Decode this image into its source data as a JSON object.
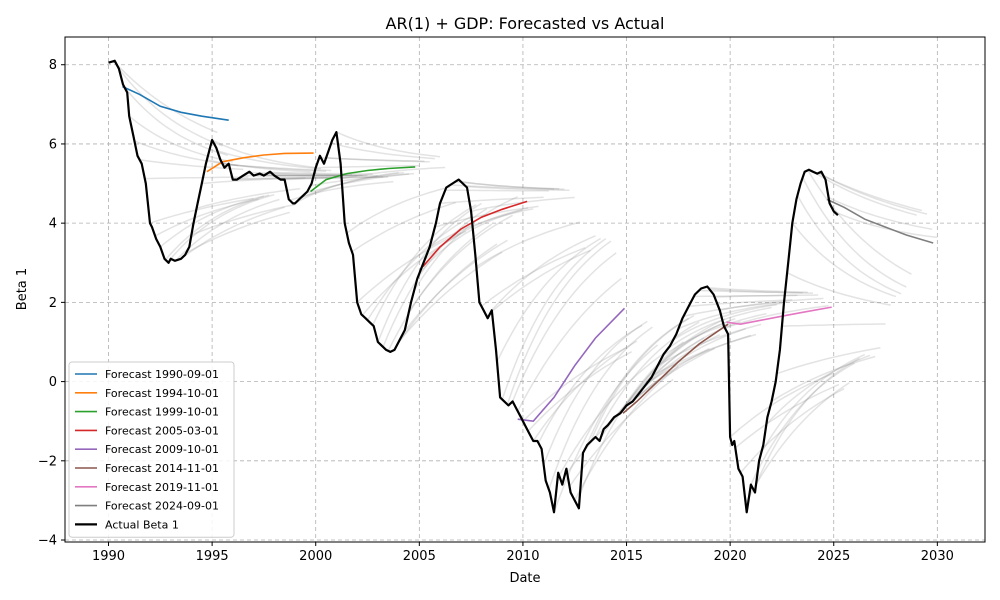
{
  "chart_data": {
    "type": "line",
    "title": "AR(1) + GDP: Forecasted vs Actual",
    "xlabel": "Date",
    "ylabel": "Beta 1",
    "xlim": [
      1987.9,
      2032.3
    ],
    "ylim": [
      -4.05,
      8.7
    ],
    "x_ticks": [
      1990,
      1995,
      2000,
      2005,
      2010,
      2015,
      2020,
      2025,
      2030
    ],
    "y_ticks": [
      -4,
      -2,
      0,
      2,
      4,
      6,
      8
    ],
    "grid": true,
    "legend_position": "lower-left",
    "actual": {
      "name": "Actual Beta 1",
      "color": "#000000",
      "x": [
        1990.0,
        1990.3,
        1990.5,
        1990.7,
        1990.9,
        1991.0,
        1991.2,
        1991.4,
        1991.6,
        1991.8,
        1992.0,
        1992.1,
        1992.3,
        1992.5,
        1992.7,
        1992.9,
        1993.0,
        1993.2,
        1993.5,
        1993.7,
        1993.9,
        1994.1,
        1994.3,
        1994.5,
        1994.7,
        1994.9,
        1995.0,
        1995.2,
        1995.4,
        1995.6,
        1995.8,
        1996.0,
        1996.2,
        1996.5,
        1996.8,
        1997.0,
        1997.3,
        1997.5,
        1997.8,
        1998.0,
        1998.3,
        1998.5,
        1998.7,
        1998.9,
        1999.0,
        1999.2,
        1999.4,
        1999.6,
        1999.8,
        2000.0,
        2000.2,
        2000.4,
        2000.6,
        2000.8,
        2001.0,
        2001.2,
        2001.4,
        2001.6,
        2001.8,
        2002.0,
        2002.2,
        2002.4,
        2002.6,
        2002.8,
        2003.0,
        2003.2,
        2003.4,
        2003.6,
        2003.8,
        2004.0,
        2004.3,
        2004.6,
        2004.9,
        2005.2,
        2005.5,
        2005.8,
        2006.0,
        2006.3,
        2006.6,
        2006.9,
        2007.1,
        2007.3,
        2007.5,
        2007.7,
        2007.9,
        2008.1,
        2008.3,
        2008.5,
        2008.7,
        2008.9,
        2009.1,
        2009.3,
        2009.5,
        2009.7,
        2009.9,
        2010.1,
        2010.3,
        2010.5,
        2010.7,
        2010.9,
        2011.1,
        2011.3,
        2011.5,
        2011.7,
        2011.9,
        2012.1,
        2012.3,
        2012.5,
        2012.7,
        2012.9,
        2013.1,
        2013.3,
        2013.5,
        2013.7,
        2013.9,
        2014.1,
        2014.4,
        2014.7,
        2015.0,
        2015.3,
        2015.6,
        2015.9,
        2016.2,
        2016.5,
        2016.8,
        2017.1,
        2017.4,
        2017.7,
        2018.0,
        2018.3,
        2018.6,
        2018.9,
        2019.2,
        2019.5,
        2019.7,
        2019.9,
        2020.0,
        2020.1,
        2020.2,
        2020.4,
        2020.6,
        2020.8,
        2021.0,
        2021.2,
        2021.4,
        2021.6,
        2021.8,
        2022.0,
        2022.2,
        2022.4,
        2022.6,
        2022.8,
        2023.0,
        2023.2,
        2023.4,
        2023.6,
        2023.8,
        2024.0,
        2024.2,
        2024.4,
        2024.6,
        2024.8,
        2025.0,
        2025.2
      ],
      "values": [
        8.05,
        8.1,
        7.9,
        7.5,
        7.3,
        6.7,
        6.2,
        5.7,
        5.5,
        5.0,
        4.0,
        3.9,
        3.6,
        3.4,
        3.1,
        3.0,
        3.1,
        3.05,
        3.1,
        3.2,
        3.4,
        4.0,
        4.5,
        5.0,
        5.5,
        5.9,
        6.1,
        5.9,
        5.6,
        5.4,
        5.5,
        5.1,
        5.1,
        5.2,
        5.3,
        5.2,
        5.25,
        5.2,
        5.3,
        5.2,
        5.1,
        5.1,
        4.6,
        4.5,
        4.5,
        4.6,
        4.7,
        4.8,
        5.0,
        5.4,
        5.7,
        5.5,
        5.8,
        6.1,
        6.3,
        5.5,
        4.0,
        3.5,
        3.2,
        2.0,
        1.7,
        1.6,
        1.5,
        1.4,
        1.0,
        0.9,
        0.8,
        0.75,
        0.8,
        1.0,
        1.3,
        2.0,
        2.6,
        3.0,
        3.4,
        4.0,
        4.5,
        4.9,
        5.0,
        5.1,
        5.0,
        4.9,
        4.3,
        3.2,
        2.0,
        1.8,
        1.6,
        1.8,
        0.8,
        -0.4,
        -0.5,
        -0.6,
        -0.5,
        -0.7,
        -0.9,
        -1.1,
        -1.3,
        -1.5,
        -1.5,
        -1.7,
        -2.5,
        -2.8,
        -3.3,
        -2.3,
        -2.6,
        -2.2,
        -2.8,
        -3.0,
        -3.2,
        -1.8,
        -1.6,
        -1.5,
        -1.4,
        -1.5,
        -1.2,
        -1.1,
        -0.9,
        -0.8,
        -0.6,
        -0.5,
        -0.3,
        -0.1,
        0.1,
        0.4,
        0.7,
        0.9,
        1.2,
        1.6,
        1.9,
        2.2,
        2.35,
        2.4,
        2.2,
        1.8,
        1.4,
        1.2,
        -1.4,
        -1.6,
        -1.5,
        -2.2,
        -2.4,
        -3.3,
        -2.6,
        -2.8,
        -2.0,
        -1.6,
        -0.9,
        -0.5,
        0.0,
        0.8,
        2.0,
        3.0,
        4.0,
        4.6,
        5.0,
        5.3,
        5.35,
        5.3,
        5.25,
        5.3,
        5.1,
        4.5,
        4.3,
        4.2
      ]
    },
    "series": [
      {
        "name": "Forecast 1990-09-01",
        "color": "#1f77b4",
        "x": [
          1990.67,
          1991.5,
          1992.5,
          1993.5,
          1994.5,
          1995.8
        ],
        "values": [
          7.45,
          7.25,
          6.95,
          6.8,
          6.7,
          6.6
        ]
      },
      {
        "name": "Forecast 1994-10-01",
        "color": "#ff7f0e",
        "x": [
          1994.75,
          1995.5,
          1996.5,
          1997.5,
          1998.5,
          1999.9
        ],
        "values": [
          5.3,
          5.55,
          5.65,
          5.72,
          5.76,
          5.77
        ]
      },
      {
        "name": "Forecast 1999-10-01",
        "color": "#2ca02c",
        "x": [
          1999.75,
          2000.5,
          2001.5,
          2002.5,
          2003.5,
          2004.8
        ],
        "values": [
          4.8,
          5.1,
          5.25,
          5.33,
          5.38,
          5.42
        ]
      },
      {
        "name": "Forecast 2005-03-01",
        "color": "#d62728",
        "x": [
          2005.17,
          2006.0,
          2007.0,
          2008.0,
          2009.0,
          2010.2
        ],
        "values": [
          2.9,
          3.4,
          3.85,
          4.15,
          4.35,
          4.55
        ]
      },
      {
        "name": "Forecast 2009-10-01",
        "color": "#9467bd",
        "x": [
          2009.75,
          2010.5,
          2011.5,
          2012.5,
          2013.5,
          2014.9
        ],
        "values": [
          -0.95,
          -1.0,
          -0.4,
          0.4,
          1.1,
          1.85
        ]
      },
      {
        "name": "Forecast 2014-11-01",
        "color": "#8c564b",
        "x": [
          2014.83,
          2015.5,
          2016.5,
          2017.5,
          2018.5,
          2019.9
        ],
        "values": [
          -0.8,
          -0.5,
          0.0,
          0.5,
          0.95,
          1.45
        ]
      },
      {
        "name": "Forecast 2019-11-01",
        "color": "#e377c2",
        "x": [
          2019.83,
          2020.5,
          2021.5,
          2022.5,
          2023.5,
          2024.9
        ],
        "values": [
          1.5,
          1.45,
          1.55,
          1.65,
          1.75,
          1.88
        ]
      },
      {
        "name": "Forecast 2024-09-01",
        "color": "#7f7f7f",
        "x": [
          2024.67,
          2025.5,
          2026.5,
          2027.5,
          2028.5,
          2029.8
        ],
        "values": [
          4.6,
          4.4,
          4.1,
          3.9,
          3.7,
          3.5
        ]
      }
    ]
  }
}
